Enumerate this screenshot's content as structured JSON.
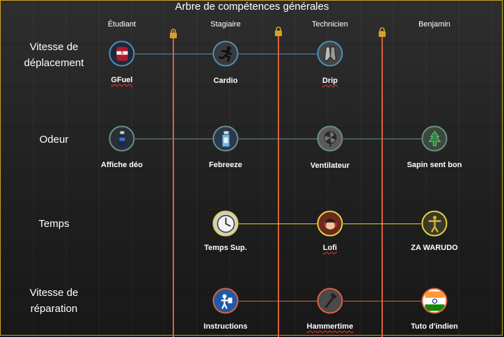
{
  "title": "Arbre de compétences générales",
  "tiers": [
    "Étudiant",
    "Stagiaire",
    "Technicien",
    "Benjamin"
  ],
  "rows": [
    {
      "label_line1": "Vitesse de",
      "label_line2": "déplacement",
      "skills": [
        {
          "label": "GFuel",
          "icon": "gfuel-can-icon"
        },
        {
          "label": "Cardio",
          "icon": "running-man-icon"
        },
        {
          "label": "Drip",
          "icon": "sneakers-icon"
        }
      ]
    },
    {
      "label": "Odeur",
      "skills": [
        {
          "label": "Affiche déo",
          "icon": "deodorant-icon"
        },
        {
          "label": "Febreeze",
          "icon": "spray-bottle-icon"
        },
        {
          "label": "Ventilateur",
          "icon": "fan-icon"
        },
        {
          "label": "Sapin sent bon",
          "icon": "pine-air-freshener-icon"
        }
      ]
    },
    {
      "label": "Temps",
      "skills": [
        {
          "label": "Temps Sup.",
          "icon": "clock-icon"
        },
        {
          "label": "Lofi",
          "icon": "lofi-girl-icon"
        },
        {
          "label": "ZA WARUDO",
          "icon": "za-warudo-icon"
        }
      ]
    },
    {
      "label_line1": "Vitesse de",
      "label_line2": "réparation",
      "skills": [
        {
          "label": "Instructions",
          "icon": "instructions-sign-icon"
        },
        {
          "label": "Hammertime",
          "icon": "hammer-icon"
        },
        {
          "label": "Tuto d'indien",
          "icon": "india-flag-icon"
        }
      ]
    }
  ],
  "colors": {
    "divider": "#e0603c",
    "lock": "#d4a22a",
    "row_speed_link": "#4f8fb8",
    "row_smell_link": "#6c8f8a",
    "row_time_link": "#e7d23c",
    "row_repair_link": "#e0603c"
  }
}
